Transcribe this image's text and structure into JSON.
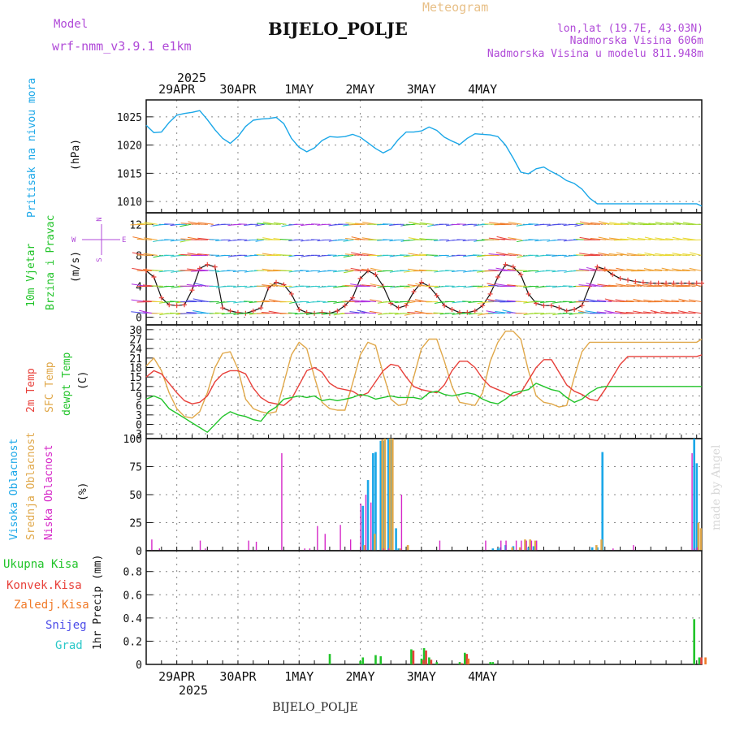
{
  "header": {
    "model_label": "Model",
    "model_name": "wrf-nmm_v3.9.1 e1km",
    "product": "Meteogram",
    "station": "BIJELO_POLJE",
    "coords": "lon,lat (19.7E, 43.03N)",
    "elevation": "Nadmorska Visina 606m",
    "model_elevation": "Nadmorska Visina u modelu 811.948m",
    "year": "2025",
    "watermark": "made by Angel",
    "footer_station": "BIJELO_POLJE"
  },
  "colors": {
    "pressure": "#1aa7e8",
    "t2m": "#e8403a",
    "sfc": "#e0a84a",
    "dew": "#22c42a",
    "label_purple": "#b04ad8",
    "high_cloud": "#1aa7e8",
    "mid_cloud": "#e0a84a",
    "low_cloud": "#d628c8",
    "total_precip": "#22c42a",
    "conv_precip": "#e8403a",
    "frz_precip": "#f07a28",
    "snow": "#4a4ae8",
    "graupel": "#2ac8c8"
  },
  "panel_labels": {
    "pressure": [
      "Pritisak na nivou mora",
      "(hPa)"
    ],
    "wind": [
      "10m Vjetar",
      "Brzina i Pravac",
      "(m/s)"
    ],
    "compass": {
      "n": "N",
      "s": "S",
      "e": "E",
      "w": "W"
    },
    "temp": [
      "2m Temp",
      "SFC Temp",
      "dewpt Temp",
      "(C)"
    ],
    "cloud": [
      "Visoka Oblacnost",
      "Srednja Oblacnost",
      "Niska Oblacnost",
      "(%)"
    ],
    "precip_legend": [
      "Ukupna Kisa",
      "Konvek.Kisa",
      "Zaledj.Kisa",
      "Snijeg",
      "Grad"
    ],
    "precip_unit": "1hr Precip (mm)"
  },
  "chart_data": [
    {
      "type": "line",
      "title": "Pritisak na nivou mora",
      "ylabel": "(hPa)",
      "ylim": [
        1008,
        1028
      ],
      "yticks": [
        1010,
        1015,
        1020,
        1025
      ],
      "x_unit": "hours from 28APR 12UTC",
      "x_categories": [
        "29APR",
        "30APR",
        "1MAY",
        "2MAY",
        "3MAY",
        "4MAY"
      ],
      "series": [
        {
          "name": "Pritisak na nivou mora",
          "x": [
            0,
            3,
            6,
            9,
            12,
            15,
            18,
            21,
            24,
            27,
            30,
            33,
            36,
            39,
            42,
            45,
            48,
            51,
            54,
            57,
            60,
            63,
            66,
            69,
            72,
            75,
            78,
            81,
            84,
            87,
            90,
            93,
            96,
            99,
            102,
            105,
            108,
            111,
            114,
            117,
            120,
            123,
            126,
            129,
            132,
            135,
            138,
            141,
            144,
            147,
            150,
            153,
            156,
            159,
            162,
            165,
            168,
            171,
            174,
            177,
            180,
            183,
            186,
            189,
            192,
            195,
            198,
            201,
            204,
            207,
            210,
            213,
            216,
            218
          ],
          "y": [
            1023.5,
            1022.2,
            1022.3,
            1024,
            1025.3,
            1025.6,
            1025.8,
            1026.1,
            1024.5,
            1022.7,
            1021.2,
            1020.3,
            1021.5,
            1023.3,
            1024.4,
            1024.6,
            1024.7,
            1024.9,
            1023.8,
            1021.2,
            1019.6,
            1018.8,
            1019.5,
            1020.8,
            1021.5,
            1021.4,
            1021.5,
            1021.9,
            1021.4,
            1020.4,
            1019.4,
            1018.6,
            1019.3,
            1021,
            1022.3,
            1022.3,
            1022.5,
            1023.2,
            1022.6,
            1021.4,
            1020.7,
            1020.1,
            1021.2,
            1022,
            1021.9,
            1021.8,
            1021.5,
            1020,
            1017.7,
            1015.2,
            1014.9,
            1015.8,
            1016.1,
            1015.3,
            1014.6,
            1013.7,
            1013.2,
            1012.2,
            1010.6,
            1009.6,
            1009.6,
            1009.6,
            1009.6,
            1009.6,
            1009.6,
            1009.6,
            1009.6,
            1009.6,
            1009.6,
            1009.6,
            1009.6,
            1009.6,
            1009.6,
            1009.2
          ]
        }
      ]
    },
    {
      "type": "line",
      "title": "10m Vjetar Brzina i Pravac",
      "ylabel": "(m/s)",
      "ylim": [
        -1,
        13.5
      ],
      "yticks": [
        0,
        4,
        8,
        12
      ],
      "series": [
        {
          "name": "10m Vjetar Brzina i Pravac",
          "x": [
            0,
            3,
            6,
            9,
            12,
            15,
            18,
            21,
            24,
            27,
            30,
            33,
            36,
            39,
            42,
            45,
            48,
            51,
            54,
            57,
            60,
            63,
            66,
            69,
            72,
            75,
            78,
            81,
            84,
            87,
            90,
            93,
            96,
            99,
            102,
            105,
            108,
            111,
            114,
            117,
            120,
            123,
            126,
            129,
            132,
            135,
            138,
            141,
            144,
            147,
            150,
            153,
            156,
            159,
            162,
            165,
            168,
            171,
            174,
            177,
            180,
            183,
            186,
            189,
            192,
            195,
            198,
            201,
            204,
            207,
            210,
            213,
            216,
            218
          ],
          "y": [
            6,
            5.2,
            2.5,
            1.6,
            1.5,
            1.6,
            3.5,
            6.3,
            6.8,
            6.5,
            1.2,
            0.8,
            0.6,
            0.5,
            0.8,
            1.2,
            3.8,
            4.5,
            4.2,
            3,
            1,
            0.6,
            0.5,
            0.6,
            0.5,
            0.8,
            1.5,
            2.5,
            5,
            6,
            5.5,
            4,
            1.8,
            1.2,
            1.5,
            3.3,
            4.5,
            4,
            2.8,
            1.5,
            1,
            0.6,
            0.6,
            0.8,
            1.5,
            3,
            5.2,
            6.8,
            6.5,
            5.5,
            3,
            1.8,
            1.5,
            1.5,
            1.2,
            0.8,
            1,
            1.5,
            4,
            6.5,
            6.2,
            5.5,
            5,
            4.8,
            4.6,
            4.5,
            4.4,
            4.4,
            4.4,
            4.4,
            4.4,
            4.4,
            4.4,
            4.4
          ]
        }
      ]
    },
    {
      "type": "line",
      "title": "2m Temp / SFC Temp / dewpt Temp",
      "ylabel": "(C)",
      "ylim": [
        -4.5,
        31.5
      ],
      "yticks": [
        -3,
        0,
        3,
        6,
        9,
        12,
        15,
        18,
        21,
        24,
        27,
        30
      ],
      "series": [
        {
          "name": "2m Temp",
          "x": [
            0,
            3,
            6,
            9,
            12,
            15,
            18,
            21,
            24,
            27,
            30,
            33,
            36,
            39,
            42,
            45,
            48,
            51,
            54,
            57,
            60,
            63,
            66,
            69,
            72,
            75,
            78,
            81,
            84,
            87,
            90,
            93,
            96,
            99,
            102,
            105,
            108,
            111,
            114,
            117,
            120,
            123,
            126,
            129,
            132,
            135,
            138,
            141,
            144,
            147,
            150,
            153,
            156,
            159,
            162,
            165,
            168,
            171,
            174,
            177,
            180,
            183,
            186,
            189,
            192,
            195,
            198,
            201,
            204,
            207,
            210,
            213,
            216,
            218
          ],
          "y": [
            15,
            17,
            16,
            13,
            10,
            7.5,
            6.5,
            7,
            9,
            13.5,
            16,
            17,
            17,
            16,
            11.5,
            8.5,
            7,
            6.5,
            6,
            8,
            12.5,
            17,
            18,
            16.5,
            13,
            11.5,
            11,
            10.5,
            9,
            10,
            13.5,
            17,
            19,
            18.5,
            15,
            12,
            11,
            10.5,
            10,
            12.5,
            17,
            20,
            20,
            18,
            14.5,
            12,
            11,
            10,
            9,
            10,
            14,
            18,
            20.5,
            20.5,
            16.5,
            12.5,
            10.5,
            9.5,
            8,
            7.5,
            11,
            15,
            19,
            21.5,
            21.5,
            21.5,
            21.5,
            21.5,
            21.5,
            21.5,
            21.5,
            21.5,
            21.5,
            22
          ]
        },
        {
          "name": "SFC Temp",
          "x": [
            0,
            3,
            6,
            9,
            12,
            15,
            18,
            21,
            24,
            27,
            30,
            33,
            36,
            39,
            42,
            45,
            48,
            51,
            54,
            57,
            60,
            63,
            66,
            69,
            72,
            75,
            78,
            81,
            84,
            87,
            90,
            93,
            96,
            99,
            102,
            105,
            108,
            111,
            114,
            117,
            120,
            123,
            126,
            129,
            132,
            135,
            138,
            141,
            144,
            147,
            150,
            153,
            156,
            159,
            162,
            165,
            168,
            171,
            174,
            177,
            180,
            183,
            186,
            189,
            192,
            195,
            198,
            201,
            204,
            207,
            210,
            213,
            216,
            218
          ],
          "y": [
            18.5,
            21,
            17,
            10,
            5,
            2.5,
            2,
            4,
            10,
            18,
            22.5,
            23,
            17.5,
            8,
            5,
            4,
            3.5,
            4,
            13,
            22,
            26,
            24,
            15,
            7,
            5,
            4.5,
            4.5,
            13,
            22,
            26,
            25,
            16,
            8,
            6,
            6.5,
            15,
            24,
            27,
            27,
            20,
            12,
            7,
            6.5,
            6,
            10,
            20,
            26,
            29.5,
            29.5,
            27,
            17,
            9,
            7,
            6.5,
            5.5,
            6,
            15,
            23,
            26,
            26,
            26,
            26,
            26,
            26,
            26,
            26,
            26,
            26,
            26,
            26,
            26,
            26,
            26,
            27
          ]
        },
        {
          "name": "dewpt Temp",
          "x": [
            0,
            3,
            6,
            9,
            12,
            15,
            18,
            21,
            24,
            27,
            30,
            33,
            36,
            39,
            42,
            45,
            48,
            51,
            54,
            57,
            60,
            63,
            66,
            69,
            72,
            75,
            78,
            81,
            84,
            87,
            90,
            93,
            96,
            99,
            102,
            105,
            108,
            111,
            114,
            117,
            120,
            123,
            126,
            129,
            132,
            135,
            138,
            141,
            144,
            147,
            150,
            153,
            156,
            159,
            162,
            165,
            168,
            171,
            174,
            177,
            180,
            183,
            186,
            189,
            192,
            195,
            198,
            201,
            204,
            207,
            210,
            213,
            216,
            218
          ],
          "y": [
            8,
            9,
            8,
            5,
            3.5,
            2,
            0.5,
            -1,
            -2.5,
            0,
            2.5,
            4,
            3,
            2.5,
            1.5,
            1,
            4,
            5.5,
            8,
            8.5,
            9,
            8.5,
            9,
            7.5,
            8,
            7.5,
            8,
            8.5,
            9.5,
            9,
            8,
            8.5,
            9,
            8.5,
            8.5,
            8.5,
            8,
            10,
            10.5,
            9.5,
            9,
            9.5,
            10,
            9.5,
            8,
            7,
            6.5,
            8,
            10,
            10.5,
            11,
            13,
            12,
            11,
            10.5,
            8.5,
            7,
            8,
            10,
            11.5,
            12,
            12,
            12,
            12,
            12,
            12,
            12,
            12,
            12,
            12,
            12,
            12,
            12,
            12
          ]
        }
      ]
    },
    {
      "type": "bar",
      "title": "Visoka / Srednja / Niska Oblacnost",
      "ylabel": "(%)",
      "ylim": [
        0,
        100
      ],
      "yticks": [
        0,
        25,
        50,
        75,
        100
      ],
      "x_unit": "hours from 28APR 12UTC",
      "series": [
        {
          "name": "Visoka Oblacnost",
          "x": [
            85,
            87,
            89,
            90,
            92,
            93,
            95,
            96,
            98,
            99,
            136,
            138,
            139,
            141,
            144,
            150,
            152,
            175,
            177,
            179,
            215,
            216
          ],
          "values": [
            40,
            63,
            87,
            88,
            98,
            98,
            100,
            100,
            20,
            2,
            2,
            2,
            3,
            5,
            4,
            3,
            4,
            3,
            3,
            88,
            100,
            78
          ]
        },
        {
          "name": "Srednja Oblacnost",
          "x": [
            85,
            89,
            92,
            93,
            95,
            96,
            99,
            102,
            143,
            146,
            148,
            150,
            152,
            176,
            178,
            216,
            217
          ],
          "values": [
            5,
            15,
            99,
            100,
            100,
            100,
            2,
            5,
            3,
            3,
            10,
            10,
            9,
            5,
            10,
            25,
            20
          ]
        },
        {
          "name": "Niska Oblacnost",
          "x": [
            3,
            6,
            22,
            24,
            41,
            44,
            54,
            63,
            65,
            68,
            71,
            77,
            81,
            85,
            87,
            89,
            94,
            96,
            101,
            116,
            134,
            140,
            142,
            146,
            148,
            150,
            152,
            154,
            184,
            192,
            215,
            216,
            217
          ],
          "values": [
            10,
            2,
            9,
            2,
            9,
            8,
            87,
            2,
            2,
            22,
            15,
            23,
            10,
            42,
            50,
            43,
            2,
            2,
            50,
            9,
            9,
            9,
            9,
            9,
            9,
            9,
            9,
            9,
            2,
            5,
            87,
            2,
            3
          ]
        }
      ]
    },
    {
      "type": "bar",
      "title": "1hr Precip (mm)",
      "ylabel": "1hr Precip (mm)",
      "ylim": [
        0,
        0.98
      ],
      "yticks": [
        0,
        0.2,
        0.4,
        0.6,
        0.8
      ],
      "x_unit": "hours from 28APR 12UTC",
      "series": [
        {
          "name": "Ukupna Kisa",
          "x": [
            72,
            84,
            85,
            90,
            92,
            104,
            108,
            109,
            111,
            114,
            123,
            125,
            135,
            136,
            215,
            217
          ],
          "values": [
            0.09,
            0.03,
            0.06,
            0.08,
            0.07,
            0.13,
            0.05,
            0.14,
            0.06,
            0.02,
            0.02,
            0.1,
            0.02,
            0.02,
            0.39,
            0.06
          ]
        },
        {
          "name": "Konvek.Kisa",
          "x": [
            104,
            108,
            109,
            111,
            123,
            125,
            217
          ],
          "values": [
            0.12,
            0.04,
            0.12,
            0.04,
            0.01,
            0.09,
            0.06
          ]
        },
        {
          "name": "Zaledj.Kisa",
          "x": [
            125,
            218
          ],
          "values": [
            0.05,
            0.06
          ]
        }
      ]
    }
  ]
}
